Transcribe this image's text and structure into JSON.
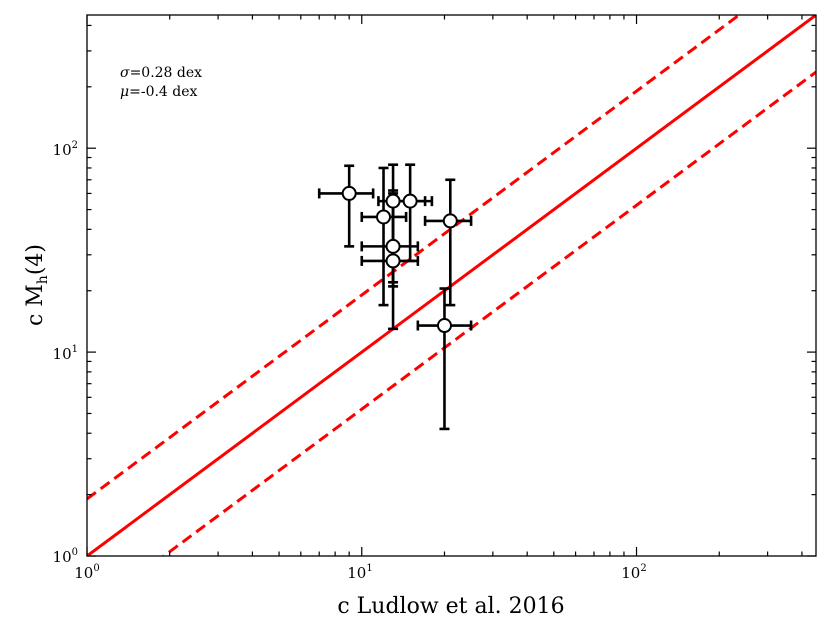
{
  "chart_data": {
    "type": "scatter",
    "xscale": "log",
    "yscale": "log",
    "xlim": [
      1,
      450
    ],
    "ylim": [
      1,
      450
    ],
    "xlabel": "c Ludlow et al. 2016",
    "ylabel_main": "c M",
    "ylabel_sub": "h",
    "ylabel_tail": "(4)",
    "xticks": [
      {
        "value": 1,
        "base": "10",
        "exp": "0"
      },
      {
        "value": 10,
        "base": "10",
        "exp": "1"
      },
      {
        "value": 100,
        "base": "10",
        "exp": "2"
      }
    ],
    "yticks": [
      {
        "value": 1,
        "base": "10",
        "exp": "0"
      },
      {
        "value": 10,
        "base": "10",
        "exp": "1"
      },
      {
        "value": 100,
        "base": "10",
        "exp": "2"
      }
    ],
    "annotations": {
      "sigma_symbol": "σ",
      "sigma_text": "=0.28 dex",
      "mu_symbol": "μ",
      "mu_text": "=-0.4 dex"
    },
    "line_color": "#ff0000",
    "marker_color": "#000000",
    "lines": [
      {
        "style": "solid",
        "factor": 1.0
      },
      {
        "style": "dashed",
        "factor": 1.905
      },
      {
        "style": "dashed",
        "factor": 0.525
      }
    ],
    "points": [
      {
        "x": 9.0,
        "y": 60.0,
        "xerr": [
          7.0,
          11.0
        ],
        "yerr": [
          33.0,
          82.0
        ]
      },
      {
        "x": 12.0,
        "y": 46.0,
        "xerr": [
          10.0,
          14.5
        ],
        "yerr": [
          17.0,
          80.0
        ]
      },
      {
        "x": 13.0,
        "y": 55.0,
        "xerr": [
          11.5,
          17.0
        ],
        "yerr": [
          13.0,
          83.0
        ]
      },
      {
        "x": 15.0,
        "y": 55.0,
        "xerr": [
          13.0,
          18.0
        ],
        "yerr": [
          28.0,
          83.0
        ]
      },
      {
        "x": 13.0,
        "y": 33.0,
        "xerr": [
          10.0,
          16.0
        ],
        "yerr": [
          22.0,
          62.0
        ]
      },
      {
        "x": 13.0,
        "y": 28.0,
        "xerr": [
          10.0,
          16.0
        ],
        "yerr": [
          21.0,
          60.0
        ]
      },
      {
        "x": 21.0,
        "y": 44.0,
        "xerr": [
          17.0,
          25.0
        ],
        "yerr": [
          17.0,
          70.0
        ]
      },
      {
        "x": 20.0,
        "y": 13.5,
        "xerr": [
          16.0,
          25.0
        ],
        "yerr": [
          4.2,
          20.5
        ]
      }
    ]
  }
}
